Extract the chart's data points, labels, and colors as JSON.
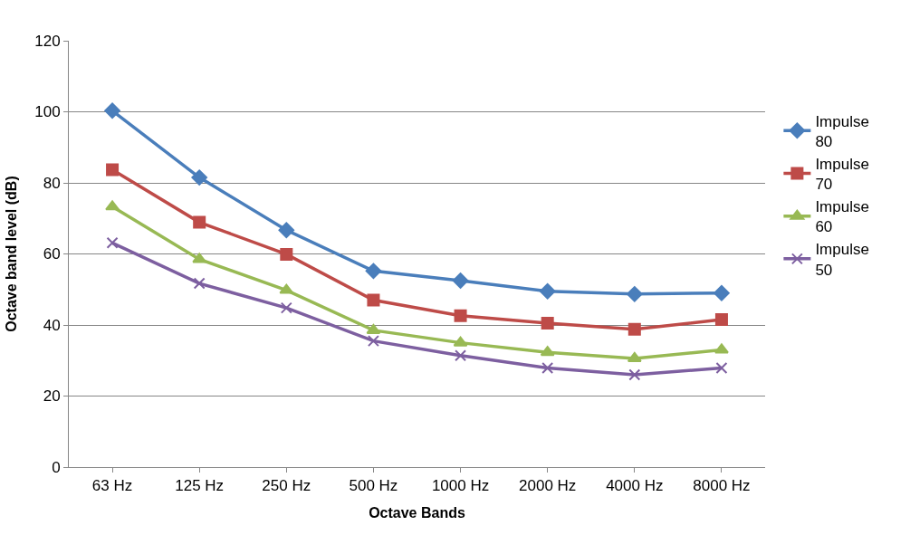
{
  "chart_data": {
    "type": "line",
    "xlabel": "Octave Bands",
    "ylabel": "Octave band level (dB)",
    "categories": [
      "63 Hz",
      "125 Hz",
      "250 Hz",
      "500 Hz",
      "1000 Hz",
      "2000 Hz",
      "4000 Hz",
      "8000 Hz"
    ],
    "series": [
      {
        "name": "Impulse 80",
        "color": "#4a7ebb",
        "marker": "diamond",
        "values": [
          100.3,
          81.5,
          66.7,
          55.2,
          52.5,
          49.5,
          48.7,
          49
        ]
      },
      {
        "name": "Impulse 70",
        "color": "#be4b48",
        "marker": "square",
        "values": [
          83.7,
          68.9,
          59.9,
          47,
          42.6,
          40.5,
          38.8,
          41.5
        ]
      },
      {
        "name": "Impulse 60",
        "color": "#98b954",
        "marker": "triangle",
        "values": [
          73.3,
          58.5,
          49.8,
          38.5,
          35,
          32.3,
          30.6,
          33
        ]
      },
      {
        "name": "Impulse 50",
        "color": "#7d5fa0",
        "marker": "cross",
        "values": [
          63.1,
          51.7,
          44.8,
          35.5,
          31.4,
          27.9,
          26,
          27.9
        ]
      }
    ],
    "ylim": [
      0,
      120
    ],
    "yticks": [
      0,
      20,
      40,
      60,
      80,
      100,
      120
    ],
    "grid": "y",
    "legend": "right",
    "line_style": "solid"
  }
}
